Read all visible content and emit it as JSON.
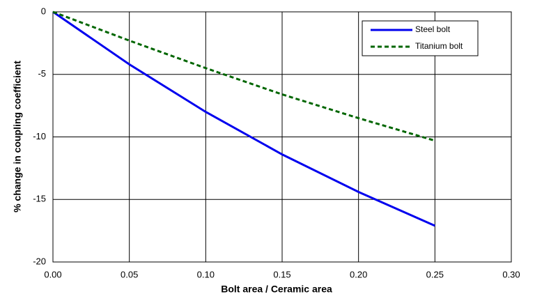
{
  "chart_data": {
    "type": "line",
    "x_label": "Bolt area / Ceramic area",
    "y_label": "% change in coupling coefficient",
    "xlim": [
      0,
      0.3
    ],
    "xticks": [
      {
        "value": 0,
        "label": "0.00"
      },
      0.05,
      {
        "value": 0.1,
        "label": "0.10"
      },
      0.15,
      {
        "value": 0.2,
        "label": "0.20"
      },
      0.25,
      {
        "value": 0.3,
        "label": "0.30"
      }
    ],
    "ylim": [
      -20,
      0
    ],
    "yticks": [
      -20,
      -15,
      -10,
      -5,
      0
    ],
    "grid": true,
    "legend": "upper right",
    "series": [
      {
        "name": "Steel bolt",
        "color": "#0000ee",
        "line_style": "solid",
        "x": [
          0,
          0.025,
          0.05,
          0.1,
          0.15,
          0.2,
          0.25
        ],
        "values": [
          0,
          -2.1,
          -4.2,
          -8.0,
          -11.4,
          -14.4,
          -17.1
        ]
      },
      {
        "name": "Titanium bolt",
        "color": "#006600",
        "line_style": "dashed",
        "x": [
          0,
          0.05,
          0.1,
          0.15,
          0.2,
          0.25
        ],
        "values": [
          0,
          -2.3,
          -4.5,
          -6.6,
          -8.5,
          -10.3
        ]
      }
    ]
  }
}
